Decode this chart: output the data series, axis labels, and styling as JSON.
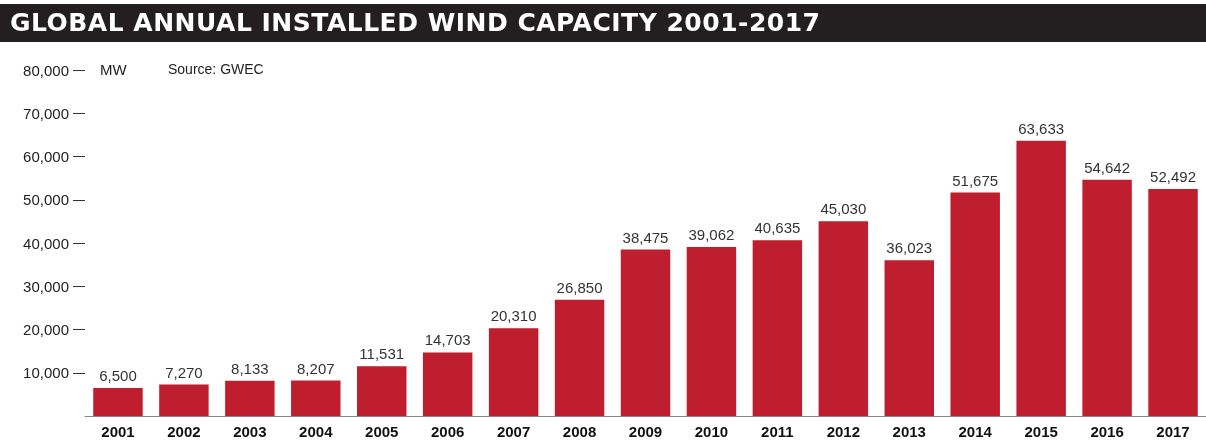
{
  "chart_data": {
    "type": "bar",
    "title": "GLOBAL ANNUAL INSTALLED WIND CAPACITY 2001-2017",
    "ylabel": "MW",
    "annotations": [
      "Source: GWEC"
    ],
    "categories": [
      "2001",
      "2002",
      "2003",
      "2004",
      "2005",
      "2006",
      "2007",
      "2008",
      "2009",
      "2010",
      "2011",
      "2012",
      "2013",
      "2014",
      "2015",
      "2016",
      "2017"
    ],
    "values": [
      6500,
      7270,
      8133,
      8207,
      11531,
      14703,
      20310,
      26850,
      38475,
      39062,
      40635,
      45030,
      36023,
      51675,
      63633,
      54642,
      52492
    ],
    "value_labels": [
      "6,500",
      "7,270",
      "8,133",
      "8,207",
      "11,531",
      "14,703",
      "20,310",
      "26,850",
      "38,475",
      "39,062",
      "40,635",
      "45,030",
      "36,023",
      "51,675",
      "63,633",
      "54,642",
      "52,492"
    ],
    "color": "#be1e2d",
    "ylim": [
      0,
      80000
    ],
    "yticks": [
      {
        "value": 10000,
        "label": "10,000"
      },
      {
        "value": 20000,
        "label": "20,000"
      },
      {
        "value": 30000,
        "label": "30,000"
      },
      {
        "value": 40000,
        "label": "40,000"
      },
      {
        "value": 50000,
        "label": "50,000"
      },
      {
        "value": 60000,
        "label": "60,000"
      },
      {
        "value": 70000,
        "label": "70,000"
      },
      {
        "value": 80000,
        "label": "80,000"
      }
    ],
    "grid": false
  }
}
